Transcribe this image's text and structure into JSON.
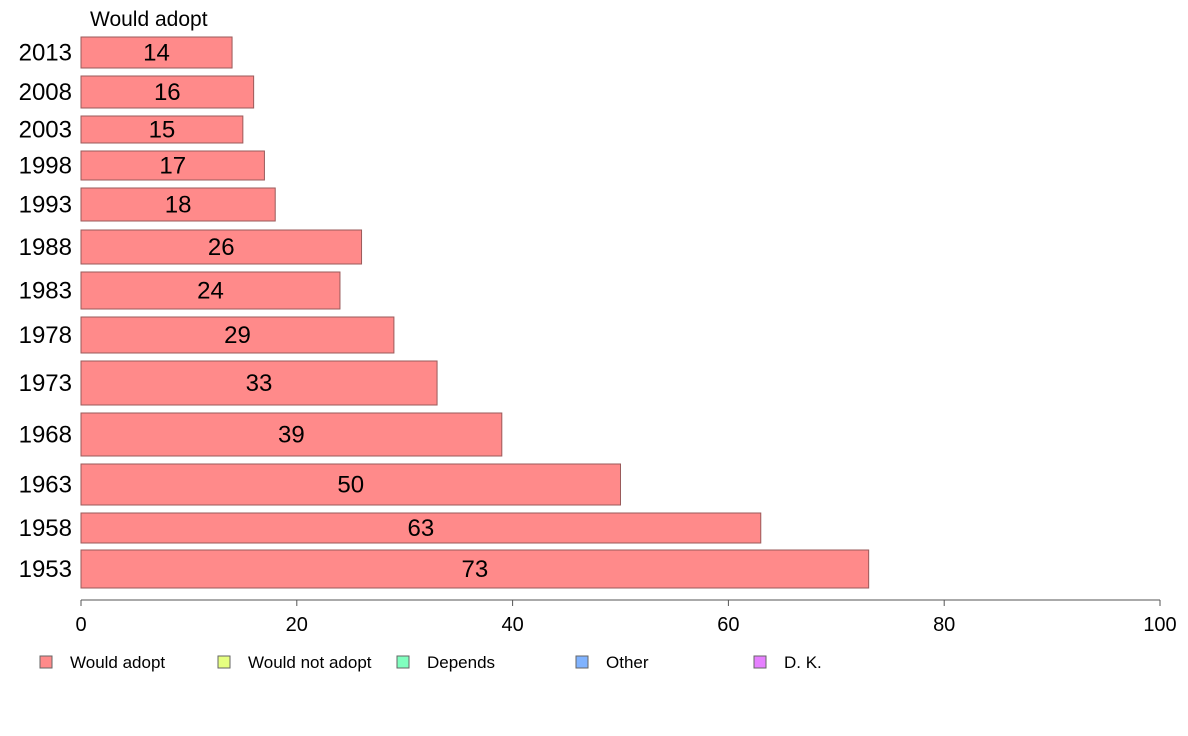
{
  "chart_data": {
    "type": "bar",
    "orientation": "horizontal",
    "title": "Would adopt",
    "categories": [
      "2013",
      "2008",
      "2003",
      "1998",
      "1993",
      "1988",
      "1983",
      "1978",
      "1973",
      "1968",
      "1963",
      "1958",
      "1953"
    ],
    "series": [
      {
        "name": "Would adopt",
        "values": [
          14,
          16,
          15,
          17,
          18,
          26,
          24,
          29,
          33,
          39,
          50,
          63,
          73
        ]
      }
    ],
    "xlim": [
      0,
      100
    ],
    "xticks": [
      0,
      20,
      40,
      60,
      80,
      100
    ],
    "grid": false,
    "legend": [
      {
        "label": "Would adopt",
        "color": "#ff8a8a"
      },
      {
        "label": "Would not adopt",
        "color": "#e6ff80"
      },
      {
        "label": "Depends",
        "color": "#80ffbf"
      },
      {
        "label": "Other",
        "color": "#80b3ff"
      },
      {
        "label": "D. K.",
        "color": "#e680ff"
      }
    ],
    "legend_position": "bottom",
    "bar_color": "#ff8a8a",
    "bar_stroke": "#9a5a5a"
  }
}
